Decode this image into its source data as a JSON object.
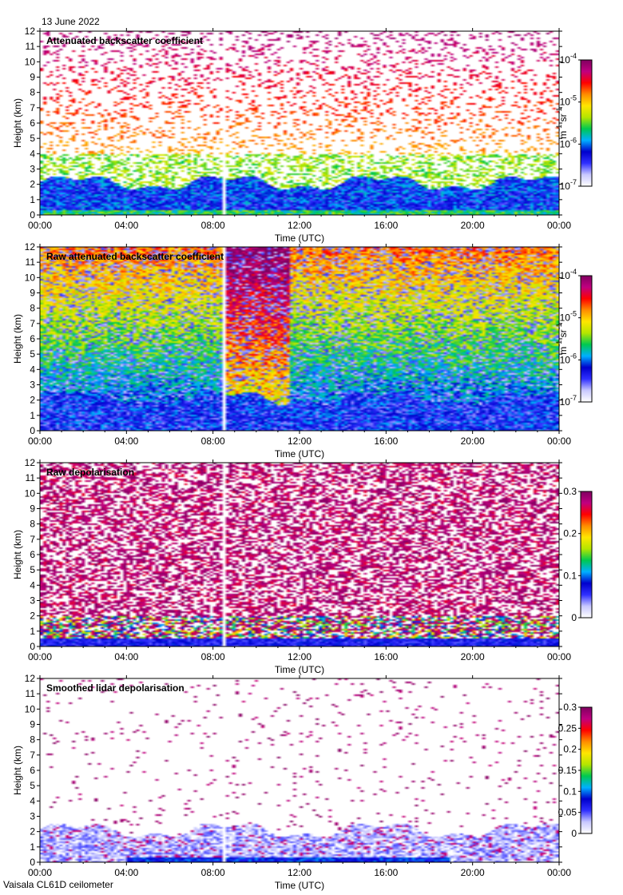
{
  "header": {
    "date": "13 June 2022"
  },
  "footer": {
    "instrument": "Vaisala CL61D ceilometer"
  },
  "colors": {
    "scale": [
      "#ffffff",
      "#c8c8ff",
      "#3030ff",
      "#0000cc",
      "#00b0ff",
      "#00c850",
      "#b4e600",
      "#ffe600",
      "#ff8c00",
      "#ff0000",
      "#c00080",
      "#800060"
    ],
    "gap_line": "#ffffff"
  },
  "chart_data": [
    {
      "type": "heatmap",
      "title": "Attenuated backscatter coefficient",
      "xlabel": "Time (UTC)",
      "ylabel": "Height (km)",
      "x_ticks": [
        "00:00",
        "04:00",
        "08:00",
        "12:00",
        "16:00",
        "20:00",
        "00:00"
      ],
      "y_ticks": [
        "0",
        "1",
        "2",
        "3",
        "4",
        "5",
        "6",
        "7",
        "8",
        "9",
        "10",
        "11",
        "12"
      ],
      "ylim": [
        0,
        12
      ],
      "xlim_hours": [
        0,
        24
      ],
      "colorbar": {
        "scale": "log",
        "range": [
          1e-07,
          0.0001
        ],
        "ticks": [
          "10^-7",
          "10^-6",
          "10^-5",
          "10^-4"
        ],
        "label": "m^-1 sr^-1"
      },
      "field": "backscatter_cleaned",
      "data_gap_hour": 8.4
    },
    {
      "type": "heatmap",
      "title": "Raw attenuated backscatter coefficient",
      "xlabel": "Time (UTC)",
      "ylabel": "Height (km)",
      "x_ticks": [
        "00:00",
        "04:00",
        "08:00",
        "12:00",
        "16:00",
        "20:00",
        "00:00"
      ],
      "y_ticks": [
        "0",
        "1",
        "2",
        "3",
        "4",
        "5",
        "6",
        "7",
        "8",
        "9",
        "10",
        "11",
        "12"
      ],
      "ylim": [
        0,
        12
      ],
      "xlim_hours": [
        0,
        24
      ],
      "colorbar": {
        "scale": "log",
        "range": [
          1e-07,
          0.0001
        ],
        "ticks": [
          "10^-7",
          "10^-6",
          "10^-5",
          "10^-4"
        ],
        "label": "m^-1 sr^-1"
      },
      "field": "backscatter_raw",
      "data_gap_hour": 8.4
    },
    {
      "type": "heatmap",
      "title": "Raw depolarisation",
      "xlabel": "Time (UTC)",
      "ylabel": "Height (km)",
      "x_ticks": [
        "00:00",
        "04:00",
        "08:00",
        "12:00",
        "16:00",
        "20:00",
        "00:00"
      ],
      "y_ticks": [
        "0",
        "1",
        "2",
        "3",
        "4",
        "5",
        "6",
        "7",
        "8",
        "9",
        "10",
        "11",
        "12"
      ],
      "ylim": [
        0,
        12
      ],
      "xlim_hours": [
        0,
        24
      ],
      "colorbar": {
        "scale": "linear",
        "range": [
          0,
          0.3
        ],
        "ticks": [
          "0",
          "0.1",
          "0.2",
          "0.3"
        ],
        "label": ""
      },
      "field": "depol_raw",
      "data_gap_hour": 8.4
    },
    {
      "type": "heatmap",
      "title": "Smoothed lidar depolarisation",
      "xlabel": "Time (UTC)",
      "ylabel": "Height (km)",
      "x_ticks": [
        "00:00",
        "04:00",
        "08:00",
        "12:00",
        "16:00",
        "20:00",
        "00:00"
      ],
      "y_ticks": [
        "0",
        "1",
        "2",
        "3",
        "4",
        "5",
        "6",
        "7",
        "8",
        "9",
        "10",
        "11",
        "12"
      ],
      "ylim": [
        0,
        12
      ],
      "xlim_hours": [
        0,
        24
      ],
      "colorbar": {
        "scale": "linear",
        "range": [
          0,
          0.3
        ],
        "ticks": [
          "0",
          "0.05",
          "0.1",
          "0.15",
          "0.2",
          "0.25",
          "0.3"
        ],
        "label": ""
      },
      "field": "depol_smoothed",
      "data_gap_hour": 8.4
    }
  ]
}
